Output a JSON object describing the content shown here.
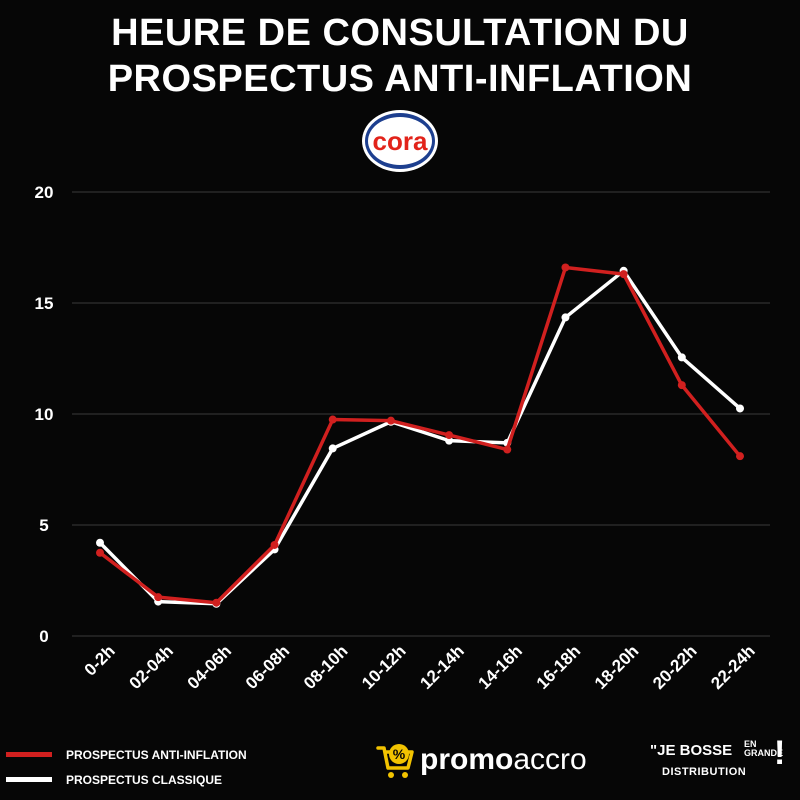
{
  "header": {
    "title_line1": "HEURE DE CONSULTATION DU",
    "title_line2": "PROSPECTUS ANTI-INFLATION"
  },
  "logo": {
    "text": "cora"
  },
  "chart_data": {
    "type": "line",
    "title": "HEURE DE CONSULTATION DU PROSPECTUS ANTI-INFLATION",
    "xlabel": "",
    "ylabel": "",
    "categories": [
      "0-2h",
      "02-04h",
      "04-06h",
      "06-08h",
      "08-10h",
      "10-12h",
      "12-14h",
      "14-16h",
      "16-18h",
      "18-20h",
      "20-22h",
      "22-24h"
    ],
    "ylim": [
      0,
      20
    ],
    "yticks": [
      0,
      5,
      10,
      15,
      20
    ],
    "grid": true,
    "series": [
      {
        "name": "PROSPECTUS CLASSIQUE",
        "color": "#ffffff",
        "values": [
          4.2,
          1.55,
          1.45,
          3.9,
          8.45,
          9.65,
          8.8,
          8.7,
          14.35,
          16.45,
          12.55,
          10.25
        ]
      },
      {
        "name": "PROSPECTUS ANTI-INFLATION",
        "color": "#d1201f",
        "values": [
          3.75,
          1.75,
          1.5,
          4.1,
          9.75,
          9.7,
          9.05,
          8.4,
          16.6,
          16.3,
          11.3,
          8.1
        ]
      }
    ]
  },
  "legend": {
    "items": [
      {
        "label": "PROSPECTUS ANTI-INFLATION",
        "color": "#d1201f"
      },
      {
        "label": "PROSPECTUS CLASSIQUE",
        "color": "#ffffff"
      }
    ]
  },
  "brands": {
    "promo_bold": "promo",
    "promo_rest": "accro",
    "jb_line1": "\"JE BOSSE",
    "jb_en": "EN",
    "jb_grande": "GRANDE",
    "jb_line2": "DISTRIBUTION",
    "jb_bang": "!"
  }
}
